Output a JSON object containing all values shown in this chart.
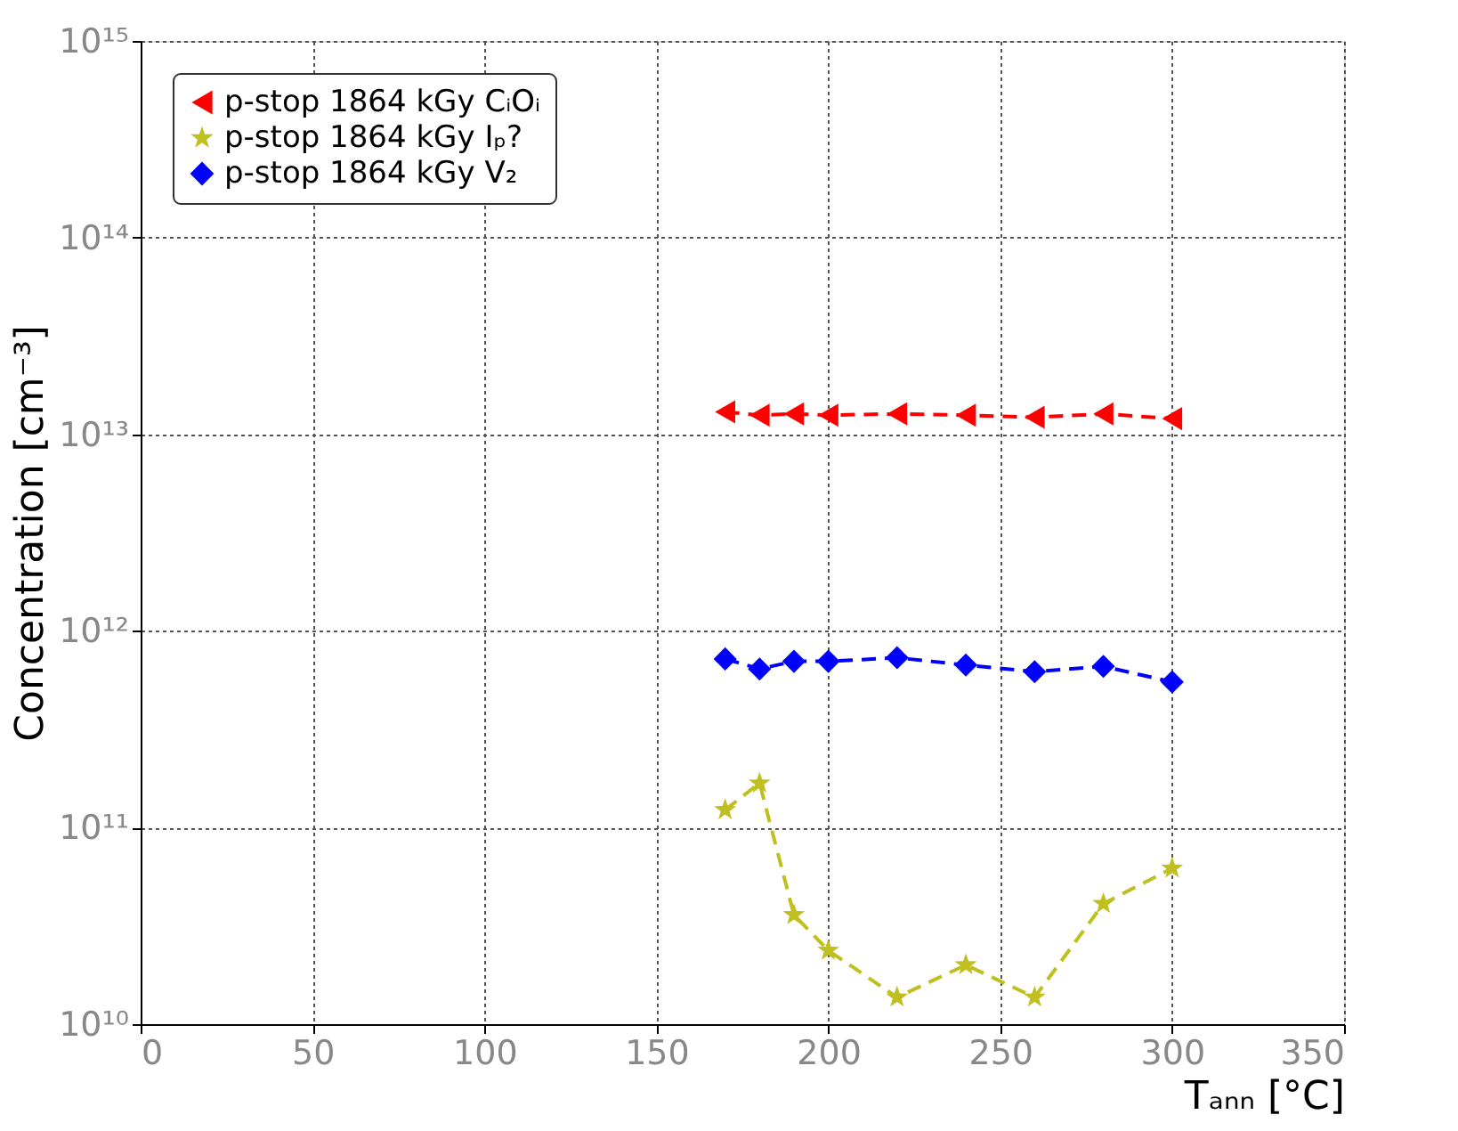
{
  "chart_data": {
    "type": "line",
    "xlabel": "Tₐₙₙ [°C]",
    "ylabel": "Concentration [cm⁻³]",
    "x": [
      170,
      180,
      190,
      200,
      220,
      240,
      260,
      280,
      300
    ],
    "series": [
      {
        "name": "p-stop 1864 kGy CᵢOᵢ",
        "color": "#ff0000",
        "marker": "triangle",
        "values": [
          13000000000000.0,
          12500000000000.0,
          12700000000000.0,
          12500000000000.0,
          12700000000000.0,
          12500000000000.0,
          12200000000000.0,
          12700000000000.0,
          12000000000000.0
        ]
      },
      {
        "name": "p-stop 1864 kGy Iₚ?",
        "color": "#bfbf20",
        "marker": "star",
        "values": [
          123000000000.0,
          168000000000.0,
          36000000000.0,
          23700000000.0,
          13700000000.0,
          20000000000.0,
          13700000000.0,
          41000000000.0,
          62000000000.0
        ]
      },
      {
        "name": "p-stop 1864 kGy V₂",
        "color": "#0000ff",
        "marker": "diamond",
        "values": [
          720000000000.0,
          640000000000.0,
          700000000000.0,
          700000000000.0,
          730000000000.0,
          670000000000.0,
          620000000000.0,
          660000000000.0,
          550000000000.0
        ]
      }
    ],
    "xlim": [
      0,
      350
    ],
    "xticks": [
      0,
      50,
      100,
      150,
      200,
      250,
      300,
      350
    ],
    "ylim": [
      10000000000.0,
      1000000000000000.0
    ],
    "yticks": [
      {
        "value": 10000000000.0,
        "label": "10¹⁰"
      },
      {
        "value": 100000000000.0,
        "label": "10¹¹"
      },
      {
        "value": 1000000000000.0,
        "label": "10¹²"
      },
      {
        "value": 10000000000000.0,
        "label": "10¹³"
      },
      {
        "value": 100000000000000.0,
        "label": "10¹⁴"
      },
      {
        "value": 1000000000000000.0,
        "label": "10¹⁵"
      }
    ],
    "log": "y",
    "grid": true,
    "legend": "top left",
    "line_style": "dashed"
  }
}
